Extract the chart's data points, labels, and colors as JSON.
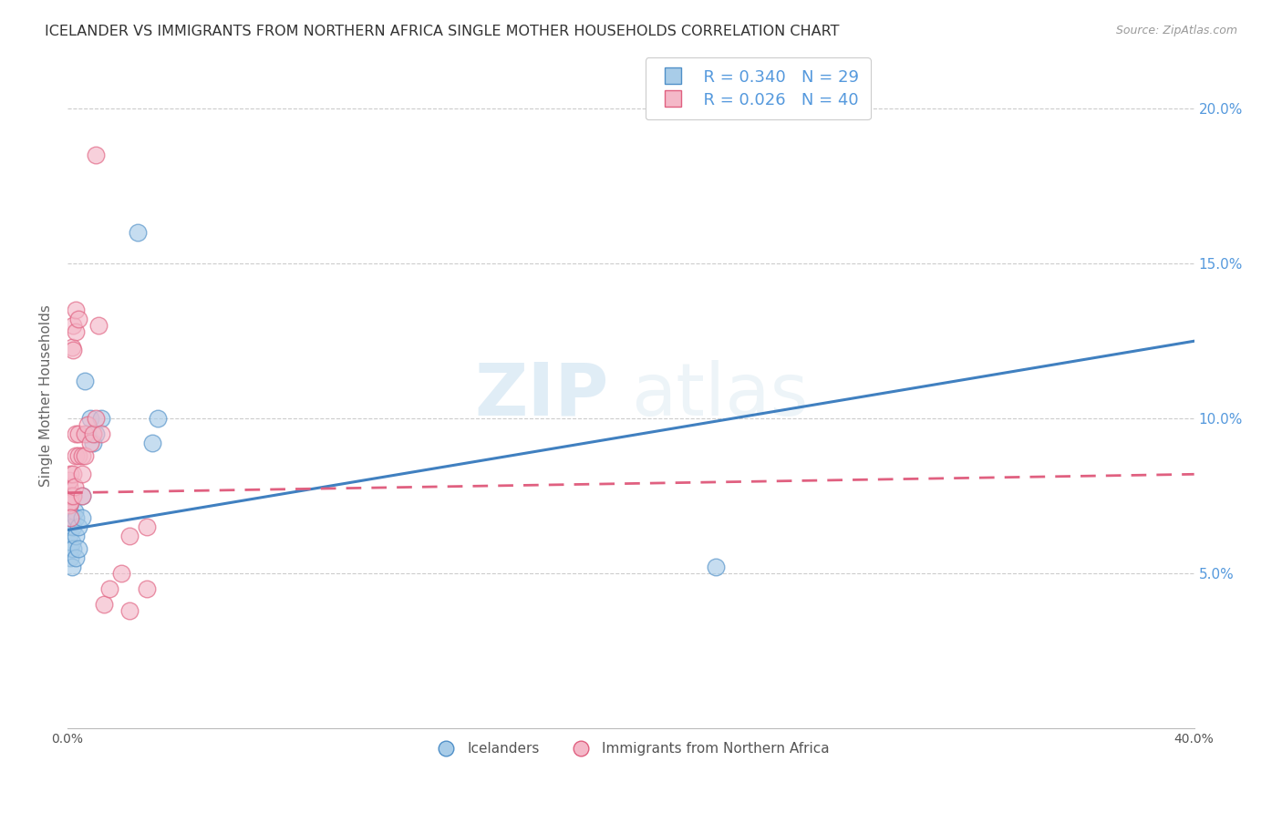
{
  "title": "ICELANDER VS IMMIGRANTS FROM NORTHERN AFRICA SINGLE MOTHER HOUSEHOLDS CORRELATION CHART",
  "source": "Source: ZipAtlas.com",
  "ylabel": "Single Mother Households",
  "watermark": "ZIPAtlas",
  "legend_blue_r": "R = 0.340",
  "legend_blue_n": "N = 29",
  "legend_pink_r": "R = 0.026",
  "legend_pink_n": "N = 40",
  "legend_blue_label": "Icelanders",
  "legend_pink_label": "Immigrants from Northern Africa",
  "blue_color": "#a8cce8",
  "pink_color": "#f4b8c8",
  "blue_edge_color": "#5090c8",
  "pink_edge_color": "#e06080",
  "blue_line_color": "#4080c0",
  "pink_line_color": "#e06080",
  "xlim": [
    0.0,
    0.4
  ],
  "ylim": [
    0.0,
    0.215
  ],
  "blue_scatter_x": [
    0.0005,
    0.0005,
    0.0008,
    0.001,
    0.001,
    0.001,
    0.0015,
    0.0015,
    0.002,
    0.002,
    0.002,
    0.0025,
    0.003,
    0.003,
    0.003,
    0.004,
    0.004,
    0.005,
    0.005,
    0.006,
    0.007,
    0.008,
    0.009,
    0.01,
    0.012,
    0.03,
    0.032,
    0.23,
    0.025
  ],
  "blue_scatter_y": [
    0.072,
    0.065,
    0.058,
    0.055,
    0.063,
    0.068,
    0.06,
    0.052,
    0.065,
    0.058,
    0.075,
    0.07,
    0.055,
    0.062,
    0.068,
    0.065,
    0.058,
    0.075,
    0.068,
    0.112,
    0.095,
    0.1,
    0.092,
    0.095,
    0.1,
    0.092,
    0.1,
    0.052,
    0.16
  ],
  "pink_scatter_x": [
    0.0003,
    0.0005,
    0.0005,
    0.0005,
    0.0008,
    0.001,
    0.001,
    0.001,
    0.0015,
    0.002,
    0.002,
    0.002,
    0.002,
    0.0025,
    0.003,
    0.003,
    0.003,
    0.003,
    0.004,
    0.004,
    0.004,
    0.005,
    0.005,
    0.005,
    0.006,
    0.006,
    0.007,
    0.008,
    0.009,
    0.01,
    0.01,
    0.011,
    0.012,
    0.013,
    0.015,
    0.019,
    0.022,
    0.022,
    0.028,
    0.028
  ],
  "pink_scatter_y": [
    0.073,
    0.078,
    0.072,
    0.08,
    0.075,
    0.073,
    0.068,
    0.082,
    0.123,
    0.13,
    0.122,
    0.075,
    0.082,
    0.078,
    0.128,
    0.135,
    0.088,
    0.095,
    0.095,
    0.088,
    0.132,
    0.088,
    0.082,
    0.075,
    0.095,
    0.088,
    0.098,
    0.092,
    0.095,
    0.1,
    0.185,
    0.13,
    0.095,
    0.04,
    0.045,
    0.05,
    0.062,
    0.038,
    0.045,
    0.065
  ],
  "blue_line_x": [
    0.0,
    0.4
  ],
  "blue_line_y": [
    0.064,
    0.125
  ],
  "pink_line_x": [
    0.0,
    0.4
  ],
  "pink_line_y": [
    0.076,
    0.082
  ],
  "bg_color": "#ffffff",
  "grid_color": "#cccccc",
  "yticks": [
    0.05,
    0.1,
    0.15,
    0.2
  ],
  "ytick_labels": [
    "5.0%",
    "10.0%",
    "15.0%",
    "20.0%"
  ],
  "xtick_labels_show": [
    "0.0%",
    "40.0%"
  ],
  "right_tick_color": "#5599dd",
  "title_color": "#333333",
  "source_color": "#999999",
  "ylabel_color": "#666666"
}
